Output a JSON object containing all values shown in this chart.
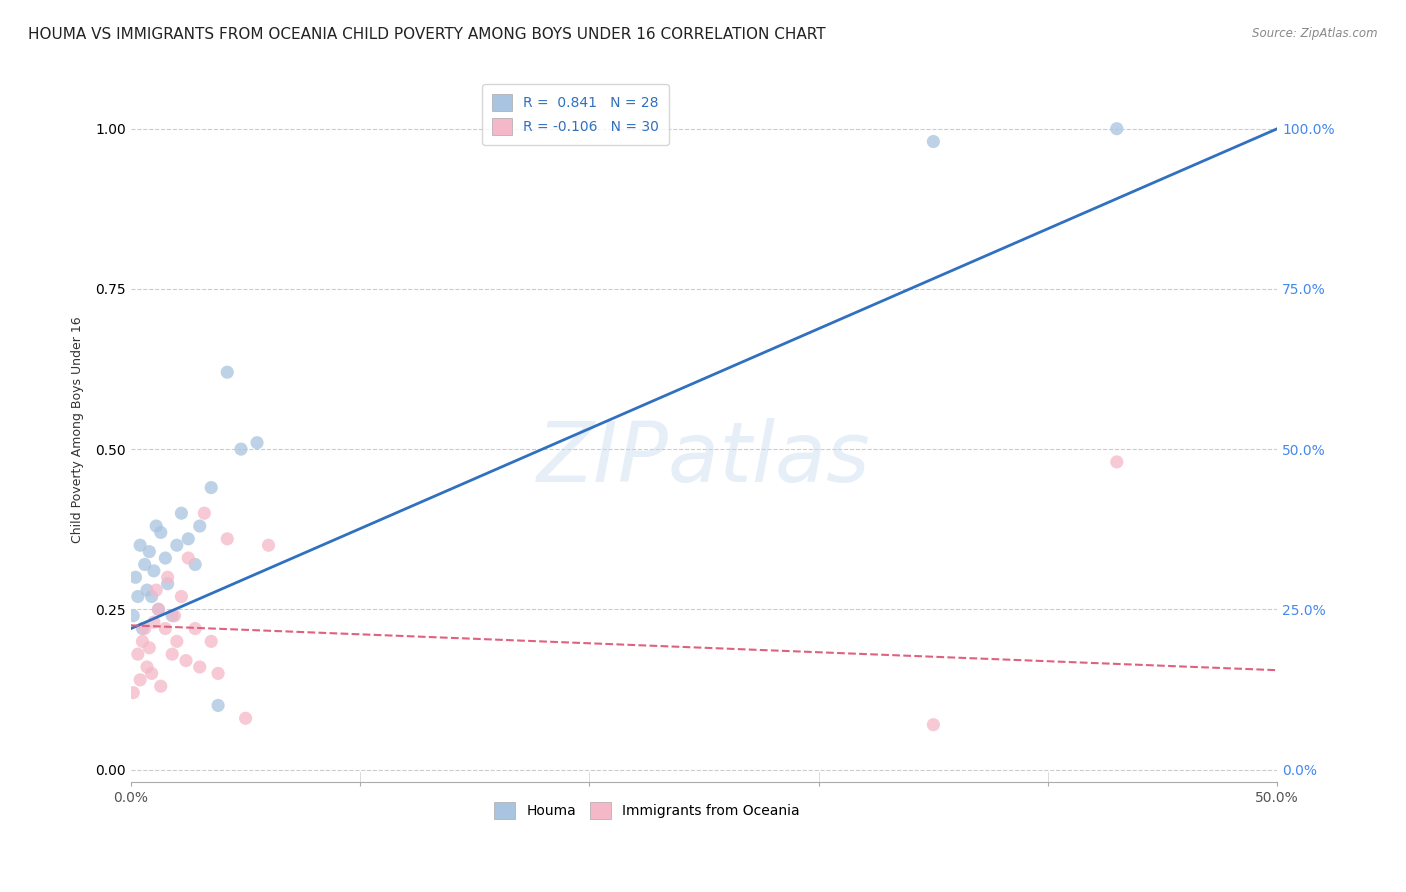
{
  "title": "HOUMA VS IMMIGRANTS FROM OCEANIA CHILD POVERTY AMONG BOYS UNDER 16 CORRELATION CHART",
  "source": "Source: ZipAtlas.com",
  "ylabel": "Child Poverty Among Boys Under 16",
  "watermark": "ZIPatlas",
  "xlim": [
    0.0,
    0.5
  ],
  "ylim": [
    -0.02,
    1.08
  ],
  "yticks_right": [
    0.0,
    0.25,
    0.5,
    0.75,
    1.0
  ],
  "ytick_labels_right": [
    "0.0%",
    "25.0%",
    "50.0%",
    "75.0%",
    "100.0%"
  ],
  "houma_R": 0.841,
  "houma_N": 28,
  "oceania_R": -0.106,
  "oceania_N": 30,
  "houma_color": "#a8c4e0",
  "oceania_color": "#f4b8c8",
  "houma_line_color": "#3070c0",
  "oceania_line_color": "#e06080",
  "legend_labels": [
    "Houma",
    "Immigrants from Oceania"
  ],
  "houma_scatter_x": [
    0.001,
    0.002,
    0.003,
    0.004,
    0.005,
    0.006,
    0.007,
    0.008,
    0.009,
    0.01,
    0.011,
    0.012,
    0.013,
    0.015,
    0.016,
    0.018,
    0.02,
    0.022,
    0.025,
    0.028,
    0.03,
    0.035,
    0.038,
    0.042,
    0.048,
    0.055,
    0.35,
    0.43
  ],
  "houma_scatter_y": [
    0.24,
    0.3,
    0.27,
    0.35,
    0.22,
    0.32,
    0.28,
    0.34,
    0.27,
    0.31,
    0.38,
    0.25,
    0.37,
    0.33,
    0.29,
    0.24,
    0.35,
    0.4,
    0.36,
    0.32,
    0.38,
    0.44,
    0.1,
    0.62,
    0.5,
    0.51,
    0.98,
    1.0
  ],
  "oceania_scatter_x": [
    0.001,
    0.003,
    0.004,
    0.005,
    0.006,
    0.007,
    0.008,
    0.009,
    0.01,
    0.011,
    0.012,
    0.013,
    0.015,
    0.016,
    0.018,
    0.019,
    0.02,
    0.022,
    0.024,
    0.025,
    0.028,
    0.03,
    0.032,
    0.035,
    0.038,
    0.042,
    0.05,
    0.06,
    0.35,
    0.43
  ],
  "oceania_scatter_y": [
    0.12,
    0.18,
    0.14,
    0.2,
    0.22,
    0.16,
    0.19,
    0.15,
    0.23,
    0.28,
    0.25,
    0.13,
    0.22,
    0.3,
    0.18,
    0.24,
    0.2,
    0.27,
    0.17,
    0.33,
    0.22,
    0.16,
    0.4,
    0.2,
    0.15,
    0.36,
    0.08,
    0.35,
    0.07,
    0.48
  ],
  "background_color": "#ffffff",
  "grid_color": "#cccccc",
  "title_fontsize": 11,
  "axis_label_fontsize": 9,
  "tick_fontsize": 10,
  "legend_fontsize": 10,
  "marker_size": 90,
  "houma_line_x0": 0.0,
  "houma_line_y0": 0.22,
  "houma_line_x1": 0.5,
  "houma_line_y1": 1.0,
  "oceania_line_x0": 0.0,
  "oceania_line_y0": 0.225,
  "oceania_line_x1": 0.5,
  "oceania_line_y1": 0.155
}
